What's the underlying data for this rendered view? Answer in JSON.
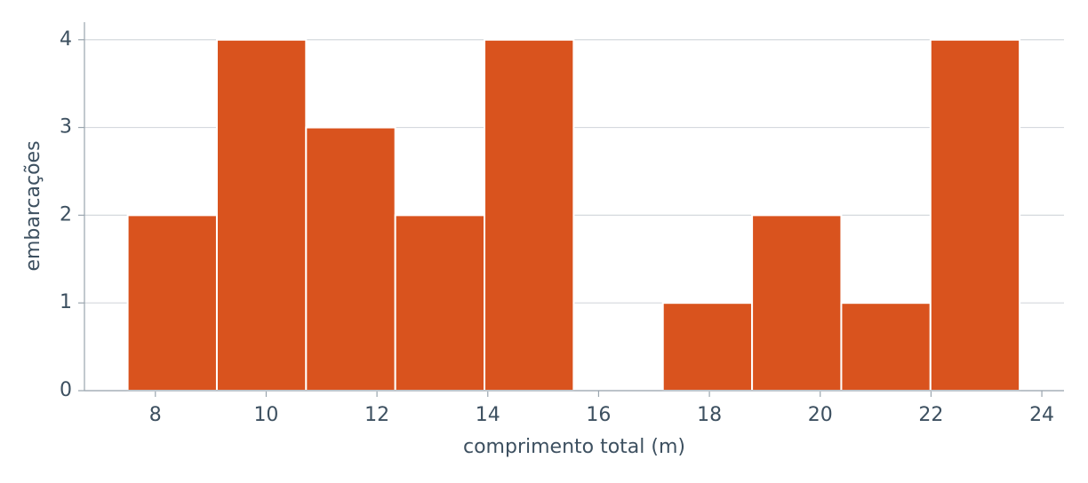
{
  "chart_data": {
    "type": "histogram",
    "xlabel": "comprimento total (m)",
    "ylabel": "embarcações",
    "bins": [
      7.5,
      9.11,
      10.72,
      12.33,
      13.94,
      15.55,
      17.16,
      18.77,
      20.38,
      21.99,
      23.6
    ],
    "values": [
      2,
      4,
      3,
      2,
      4,
      0,
      1,
      2,
      1,
      4
    ],
    "color": "#d9531e",
    "xlim": [
      6.72,
      24.4
    ],
    "xticks": [
      8,
      10,
      12,
      14,
      16,
      18,
      20,
      22,
      24
    ],
    "ylim": [
      0,
      4.2
    ],
    "yticks": [
      0,
      1,
      2,
      3,
      4
    ],
    "grid": true
  }
}
